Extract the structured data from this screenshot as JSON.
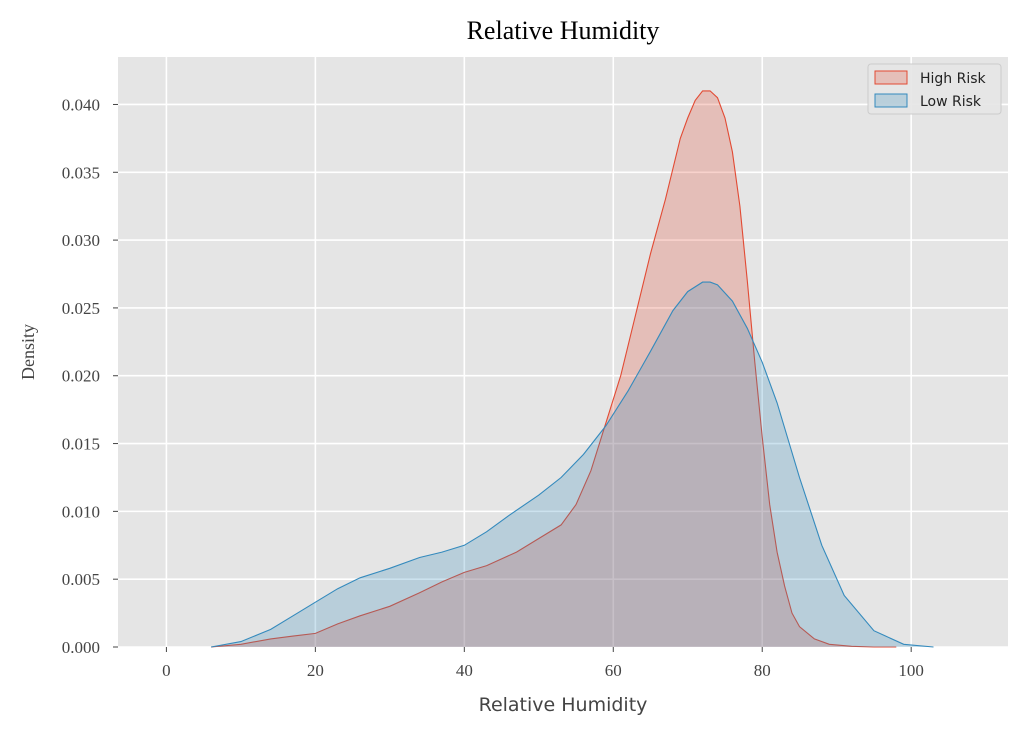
{
  "chart_data": {
    "type": "area",
    "title": "Relative Humidity",
    "xlabel": "Relative Humidity",
    "ylabel": "Density",
    "xlim": [
      -6.5,
      113
    ],
    "ylim": [
      0,
      0.0435
    ],
    "x_ticks": [
      0,
      20,
      40,
      60,
      80,
      100
    ],
    "x_tick_labels": [
      "0",
      "20",
      "40",
      "60",
      "80",
      "100"
    ],
    "y_ticks": [
      0,
      0.005,
      0.01,
      0.015,
      0.02,
      0.025,
      0.03,
      0.035,
      0.04
    ],
    "y_tick_labels": [
      "0.000",
      "0.005",
      "0.010",
      "0.015",
      "0.020",
      "0.025",
      "0.030",
      "0.035",
      "0.040"
    ],
    "grid": true,
    "legend_position": "top-right",
    "background": "#e5e5e5",
    "series": [
      {
        "name": "High Risk",
        "line_color": "#e24a33",
        "fill_color": "#e24a33",
        "x": [
          6,
          10,
          14,
          17,
          20,
          23,
          26,
          30,
          34,
          37,
          40,
          43,
          47,
          50,
          53,
          55,
          57,
          59,
          61,
          63,
          65,
          67,
          69,
          70,
          71,
          72,
          73,
          74,
          75,
          76,
          77,
          78,
          79,
          80,
          81,
          82,
          83,
          84,
          85,
          87,
          89,
          92,
          95,
          98
        ],
        "y": [
          0,
          0.0002,
          0.0006,
          0.0008,
          0.001,
          0.0017,
          0.0023,
          0.003,
          0.004,
          0.0048,
          0.0055,
          0.006,
          0.007,
          0.008,
          0.009,
          0.0105,
          0.013,
          0.0165,
          0.02,
          0.0245,
          0.029,
          0.033,
          0.0375,
          0.039,
          0.0403,
          0.041,
          0.041,
          0.0405,
          0.039,
          0.0365,
          0.0325,
          0.027,
          0.021,
          0.0155,
          0.0105,
          0.007,
          0.0045,
          0.0025,
          0.0015,
          0.0006,
          0.0002,
          5e-05,
          0,
          0
        ]
      },
      {
        "name": "Low Risk",
        "line_color": "#348abd",
        "fill_color": "#348abd",
        "x": [
          6,
          10,
          14,
          17,
          20,
          23,
          26,
          30,
          34,
          37,
          40,
          43,
          46,
          50,
          53,
          56,
          59,
          62,
          65,
          68,
          70,
          72,
          73,
          74,
          76,
          78,
          80,
          82,
          85,
          88,
          91,
          95,
          99,
          103
        ],
        "y": [
          0,
          0.0004,
          0.0013,
          0.0023,
          0.0033,
          0.0043,
          0.0051,
          0.0058,
          0.0066,
          0.007,
          0.0075,
          0.0085,
          0.0097,
          0.0112,
          0.0125,
          0.0142,
          0.0163,
          0.0189,
          0.0218,
          0.0248,
          0.0262,
          0.0269,
          0.0269,
          0.0267,
          0.0255,
          0.0235,
          0.021,
          0.018,
          0.0125,
          0.0075,
          0.0038,
          0.0012,
          0.0002,
          0
        ]
      }
    ]
  }
}
